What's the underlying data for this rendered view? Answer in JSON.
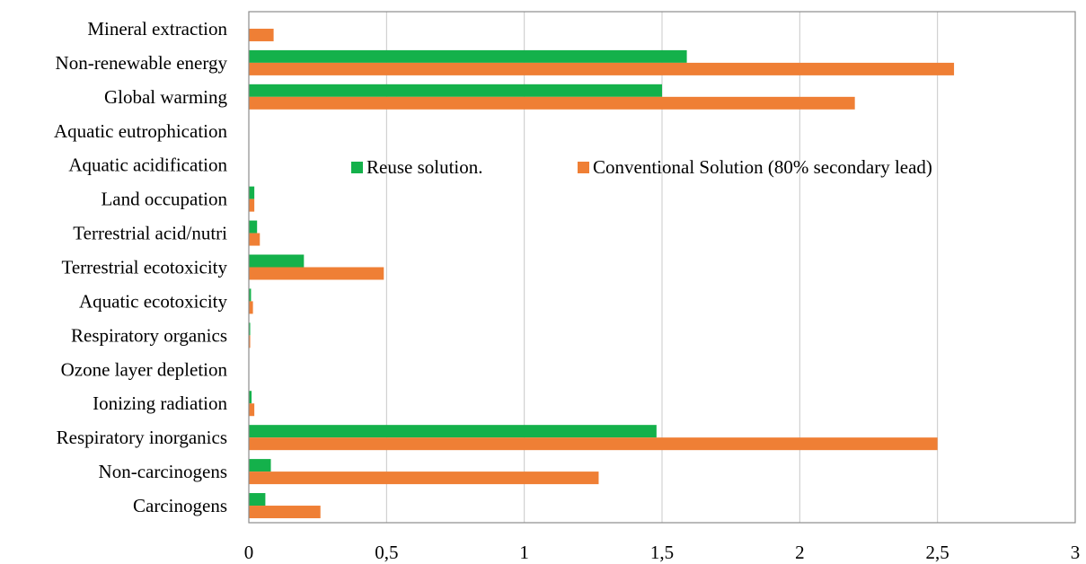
{
  "chart_data": {
    "type": "bar",
    "orientation": "horizontal",
    "categories": [
      "Carcinogens",
      "Non-carcinogens",
      "Respiratory inorganics",
      "Ionizing radiation",
      "Ozone layer depletion",
      "Respiratory organics",
      "Aquatic ecotoxicity",
      "Terrestrial ecotoxicity",
      "Terrestrial acid/nutri",
      "Land occupation",
      "Aquatic acidification",
      "Aquatic eutrophication",
      "Global warming",
      "Non-renewable energy",
      "Mineral extraction"
    ],
    "series": [
      {
        "name": "Reuse solution.",
        "color": "#14b14b",
        "values": [
          0.06,
          0.08,
          1.48,
          0.01,
          0.0,
          0.005,
          0.008,
          0.2,
          0.03,
          0.02,
          0.0,
          0.0,
          1.5,
          1.59,
          0.0
        ]
      },
      {
        "name": "Conventional Solution (80% secondary lead)",
        "color": "#ef7f35",
        "values": [
          0.26,
          1.27,
          2.5,
          0.02,
          0.0,
          0.005,
          0.015,
          0.49,
          0.04,
          0.02,
          0.0,
          0.0,
          2.2,
          2.56,
          0.09
        ]
      }
    ],
    "xlim": [
      0,
      3
    ],
    "xticks": [
      0,
      0.5,
      1,
      1.5,
      2,
      2.5,
      3
    ],
    "xtick_labels": [
      "0",
      "0,5",
      "1",
      "1,5",
      "2",
      "2,5",
      "3"
    ],
    "grid": "vertical",
    "legend_position": "inside-top-center",
    "title": "",
    "xlabel": "",
    "ylabel": ""
  }
}
